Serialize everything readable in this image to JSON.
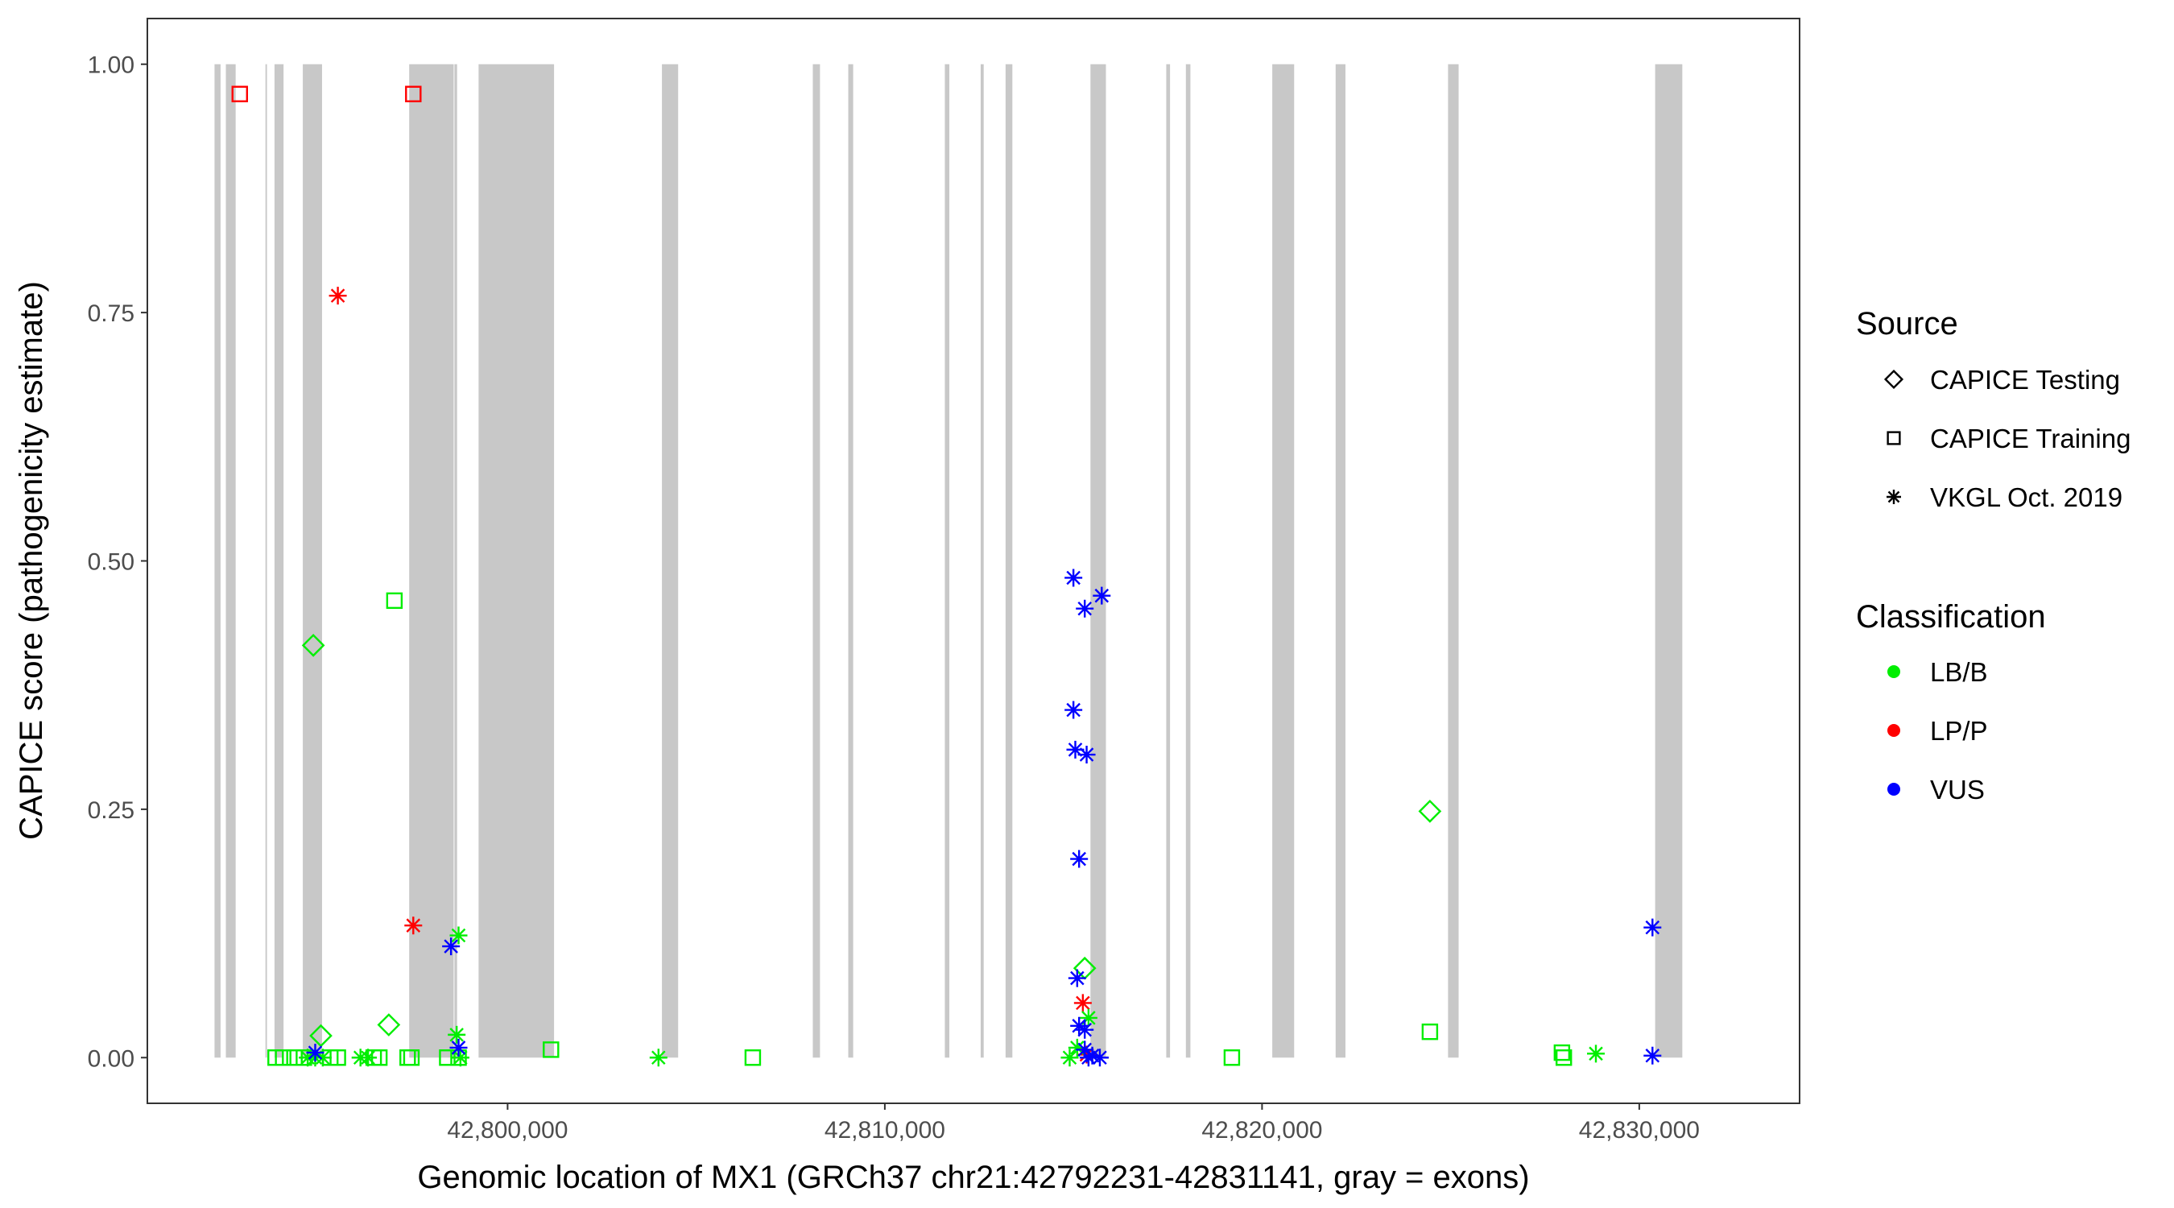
{
  "chart_data": {
    "type": "scatter",
    "xlabel": "Genomic location of MX1 (GRCh37 chr21:42792231-42831141, gray = exons)",
    "ylabel": "CAPICE score (pathogenicity estimate)",
    "xlim": [
      42790450,
      42834250
    ],
    "ylim": [
      -0.046,
      1.046
    ],
    "x_ticks": [
      42800000,
      42810000,
      42820000,
      42830000
    ],
    "x_tick_labels": [
      "42,800,000",
      "42,810,000",
      "42,820,000",
      "42,830,000"
    ],
    "y_ticks": [
      0,
      0.25,
      0.5,
      0.75,
      1.0
    ],
    "y_tick_labels": [
      "0.00",
      "0.25",
      "0.50",
      "0.75",
      "1.00"
    ],
    "grid": false,
    "panel_border": true,
    "exon_color": "#c8c8c8",
    "exons": [
      [
        42792231,
        42792391
      ],
      [
        42792531,
        42792791
      ],
      [
        42793581,
        42793621
      ],
      [
        42793821,
        42794061
      ],
      [
        42794571,
        42795081
      ],
      [
        42797391,
        42798571
      ],
      [
        42798591,
        42798661
      ],
      [
        42799231,
        42801231
      ],
      [
        42804091,
        42804521
      ],
      [
        42808091,
        42808281
      ],
      [
        42809031,
        42809161
      ],
      [
        42811591,
        42811711
      ],
      [
        42812541,
        42812621
      ],
      [
        42813201,
        42813381
      ],
      [
        42815451,
        42815861
      ],
      [
        42817461,
        42817561
      ],
      [
        42817981,
        42818101
      ],
      [
        42820271,
        42820851
      ],
      [
        42821951,
        42822211
      ],
      [
        42824931,
        42825211
      ],
      [
        42830421,
        42831141
      ]
    ],
    "legend": {
      "position": "right",
      "source": {
        "title": "Source",
        "items": [
          {
            "label": "CAPICE Testing",
            "shape": "diamond"
          },
          {
            "label": "CAPICE Training",
            "shape": "square"
          },
          {
            "label": "VKGL Oct. 2019",
            "shape": "asterisk"
          }
        ]
      },
      "classification": {
        "title": "Classification",
        "items": [
          {
            "label": "LB/B",
            "color": "#00ee00"
          },
          {
            "label": "LP/P",
            "color": "#ff0000"
          },
          {
            "label": "VUS",
            "color": "#0000ff"
          }
        ]
      }
    },
    "series": [
      {
        "source": "CAPICE Training",
        "classification": "LP/P",
        "points": [
          [
            42792900,
            0.97
          ],
          [
            42797500,
            0.97
          ]
        ]
      },
      {
        "source": "CAPICE Training",
        "classification": "LB/B",
        "points": [
          [
            42793850,
            0.0
          ],
          [
            42794050,
            0.0
          ],
          [
            42794350,
            0.0
          ],
          [
            42794600,
            0.0
          ],
          [
            42795300,
            0.0
          ],
          [
            42795500,
            0.0
          ],
          [
            42796450,
            0.0
          ],
          [
            42796600,
            0.0
          ],
          [
            42797000,
            0.46
          ],
          [
            42797350,
            0.0
          ],
          [
            42797450,
            0.0
          ],
          [
            42798400,
            0.0
          ],
          [
            42798700,
            0.0
          ],
          [
            42801150,
            0.008
          ],
          [
            42806500,
            0.0
          ],
          [
            42819200,
            0.0
          ],
          [
            42824450,
            0.026
          ],
          [
            42827950,
            0.005
          ],
          [
            42828000,
            0.0
          ]
        ]
      },
      {
        "source": "CAPICE Testing",
        "classification": "LB/B",
        "points": [
          [
            42794850,
            0.415
          ],
          [
            42795050,
            0.022
          ],
          [
            42796850,
            0.033
          ],
          [
            42815300,
            0.09
          ],
          [
            42824450,
            0.248
          ]
        ]
      },
      {
        "source": "VKGL Oct. 2019",
        "classification": "LP/P",
        "points": [
          [
            42795500,
            0.767
          ],
          [
            42797500,
            0.133
          ],
          [
            42815250,
            0.055
          ],
          [
            42815350,
            0.003
          ]
        ]
      },
      {
        "source": "VKGL Oct. 2019",
        "classification": "LB/B",
        "points": [
          [
            42794700,
            0.0
          ],
          [
            42794900,
            0.0
          ],
          [
            42795100,
            0.0
          ],
          [
            42796100,
            0.0
          ],
          [
            42796300,
            0.0
          ],
          [
            42798700,
            0.123
          ],
          [
            42798650,
            0.023
          ],
          [
            42798750,
            0.0
          ],
          [
            42804000,
            0.0
          ],
          [
            42814900,
            0.0
          ],
          [
            42815100,
            0.01
          ],
          [
            42815400,
            0.04
          ],
          [
            42828850,
            0.004
          ]
        ]
      },
      {
        "source": "VKGL Oct. 2019",
        "classification": "VUS",
        "points": [
          [
            42794900,
            0.005
          ],
          [
            42798500,
            0.112
          ],
          [
            42798700,
            0.01
          ],
          [
            42815000,
            0.483
          ],
          [
            42815300,
            0.452
          ],
          [
            42815750,
            0.465
          ],
          [
            42815000,
            0.35
          ],
          [
            42815050,
            0.31
          ],
          [
            42815350,
            0.305
          ],
          [
            42815150,
            0.2
          ],
          [
            42815100,
            0.08
          ],
          [
            42815150,
            0.032
          ],
          [
            42815300,
            0.028
          ],
          [
            42815300,
            0.008
          ],
          [
            42815500,
            0.002
          ],
          [
            42815700,
            0.0
          ],
          [
            42815400,
            0.0
          ],
          [
            42830350,
            0.131
          ],
          [
            42830350,
            0.002
          ]
        ]
      }
    ]
  }
}
